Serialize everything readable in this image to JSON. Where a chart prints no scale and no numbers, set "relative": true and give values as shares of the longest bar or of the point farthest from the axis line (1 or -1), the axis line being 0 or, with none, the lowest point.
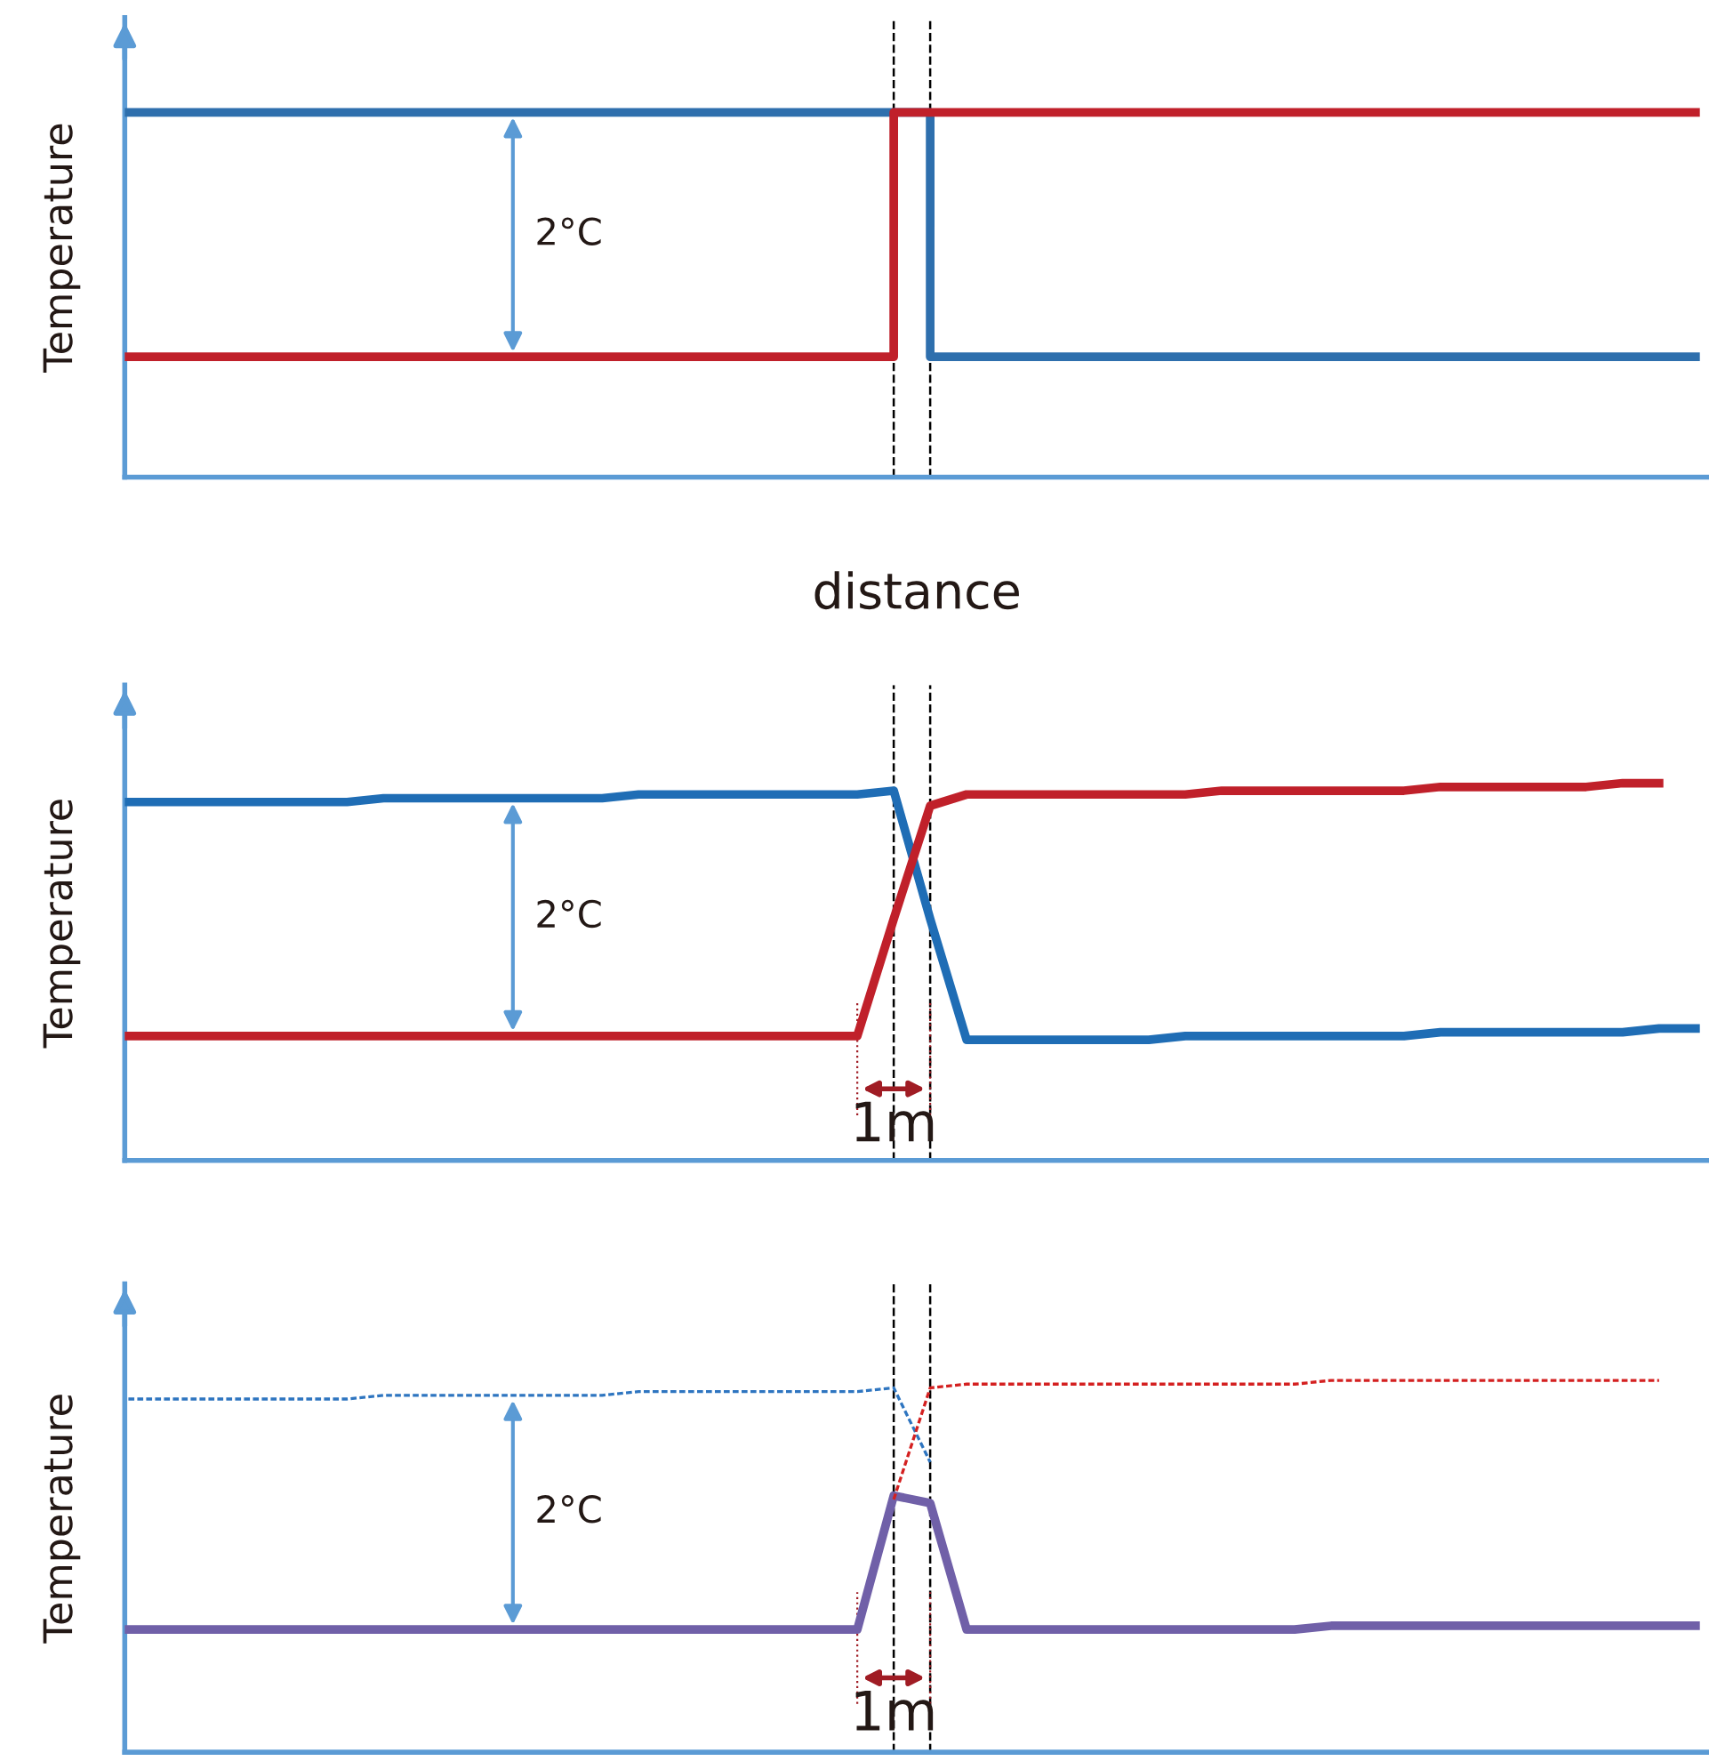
{
  "chart_data": [
    {
      "type": "step",
      "relative": true,
      "xlabel": "distance",
      "ylabel": "Temperature",
      "categories": [
        null,
        null,
        null,
        null,
        null,
        null,
        null,
        null,
        null,
        null,
        null,
        null,
        null,
        null,
        null,
        null,
        null,
        null,
        null,
        null,
        null,
        null,
        null,
        null,
        null,
        null,
        null,
        null,
        null,
        null,
        null,
        null,
        null,
        null,
        null,
        null,
        null,
        null,
        null,
        null,
        null,
        null,
        null,
        null
      ],
      "series": [
        {
          "color": "#2e6fad",
          "values": [
            1,
            1,
            1,
            1,
            1,
            1,
            1,
            1,
            1,
            1,
            1,
            1,
            1,
            1,
            1,
            1,
            1,
            1,
            1,
            1,
            1,
            1,
            0.33,
            0.33,
            0.33,
            0.33,
            0.33,
            0.33,
            0.33,
            0.33,
            0.33,
            0.33,
            0.33,
            0.33,
            0.33,
            0.33,
            0.33,
            0.33,
            0.33,
            0.33,
            0.33,
            0.33,
            0.33,
            0.33
          ]
        },
        {
          "color": "#c0202a",
          "values": [
            0.33,
            0.33,
            0.33,
            0.33,
            0.33,
            0.33,
            0.33,
            0.33,
            0.33,
            0.33,
            0.33,
            0.33,
            0.33,
            0.33,
            0.33,
            0.33,
            0.33,
            0.33,
            0.33,
            0.33,
            0.33,
            1,
            1,
            1,
            1,
            1,
            1,
            1,
            1,
            1,
            1,
            1,
            1,
            1,
            1,
            1,
            1,
            1,
            1,
            1,
            1,
            1,
            1,
            1
          ]
        }
      ],
      "annotations": [
        "2°C"
      ]
    },
    {
      "type": "line",
      "relative": true,
      "ylabel": "Temperature",
      "categories": [
        null,
        null,
        null,
        null,
        null,
        null,
        null,
        null,
        null,
        null,
        null,
        null,
        null,
        null,
        null,
        null,
        null,
        null,
        null,
        null,
        null,
        null,
        null,
        null,
        null,
        null,
        null,
        null,
        null,
        null,
        null,
        null,
        null,
        null,
        null,
        null,
        null,
        null,
        null,
        null,
        null,
        null,
        null,
        null
      ],
      "series": [
        {
          "color": "#1f6db5",
          "values": [
            0.95,
            0.95,
            0.95,
            0.95,
            0.95,
            0.95,
            0.95,
            0.96,
            0.96,
            0.96,
            0.96,
            0.96,
            0.96,
            0.96,
            0.97,
            0.97,
            0.97,
            0.97,
            0.97,
            0.97,
            0.97,
            0.98,
            0.64,
            0.32,
            0.32,
            0.32,
            0.32,
            0.32,
            0.32,
            0.33,
            0.33,
            0.33,
            0.33,
            0.33,
            0.33,
            0.33,
            0.34,
            0.34,
            0.34,
            0.34,
            0.34,
            0.34,
            0.35,
            0.35
          ]
        },
        {
          "color": "#c0202a",
          "values": [
            0.33,
            0.33,
            0.33,
            0.33,
            0.33,
            0.33,
            0.33,
            0.33,
            0.33,
            0.33,
            0.33,
            0.33,
            0.33,
            0.33,
            0.33,
            0.33,
            0.33,
            0.33,
            0.33,
            0.33,
            0.33,
            0.64,
            0.94,
            0.97,
            0.97,
            0.97,
            0.97,
            0.97,
            0.97,
            0.97,
            0.98,
            0.98,
            0.98,
            0.98,
            0.98,
            0.98,
            0.99,
            0.99,
            0.99,
            0.99,
            0.99,
            1,
            1,
            null
          ]
        }
      ],
      "annotations": [
        "2°C",
        "1m"
      ]
    },
    {
      "type": "line",
      "relative": true,
      "ylabel": "Temperature",
      "categories": [
        null,
        null,
        null,
        null,
        null,
        null,
        null,
        null,
        null,
        null,
        null,
        null,
        null,
        null,
        null,
        null,
        null,
        null,
        null,
        null,
        null,
        null,
        null,
        null,
        null,
        null,
        null,
        null,
        null,
        null,
        null,
        null,
        null,
        null,
        null,
        null,
        null,
        null,
        null,
        null,
        null,
        null,
        null,
        null
      ],
      "series": [
        {
          "color": "#2e75c0",
          "line_style": "dashed",
          "values": [
            0.95,
            0.95,
            0.95,
            0.95,
            0.95,
            0.95,
            0.95,
            0.96,
            0.96,
            0.96,
            0.96,
            0.96,
            0.96,
            0.96,
            0.97,
            0.97,
            0.97,
            0.97,
            0.97,
            0.97,
            0.97,
            0.98,
            0.78,
            null,
            null,
            null,
            null,
            null,
            null,
            null,
            null,
            null,
            null,
            null,
            null,
            null,
            null,
            null,
            null,
            null,
            null,
            null,
            null,
            null
          ]
        },
        {
          "color": "#d42020",
          "line_style": "dashed",
          "values": [
            null,
            null,
            null,
            null,
            null,
            null,
            null,
            null,
            null,
            null,
            null,
            null,
            null,
            null,
            null,
            null,
            null,
            null,
            null,
            null,
            null,
            0.68,
            0.98,
            0.99,
            0.99,
            0.99,
            0.99,
            0.99,
            0.99,
            0.99,
            0.99,
            0.99,
            0.99,
            1,
            1,
            1,
            1,
            1,
            1,
            1,
            1,
            1,
            1,
            null
          ]
        },
        {
          "color": "#7060a8",
          "line_style": "solid",
          "values": [
            0.33,
            0.33,
            0.33,
            0.33,
            0.33,
            0.33,
            0.33,
            0.33,
            0.33,
            0.33,
            0.33,
            0.33,
            0.33,
            0.33,
            0.33,
            0.33,
            0.33,
            0.33,
            0.33,
            0.33,
            0.33,
            0.69,
            0.67,
            0.33,
            0.33,
            0.33,
            0.33,
            0.33,
            0.33,
            0.33,
            0.33,
            0.33,
            0.33,
            0.34,
            0.34,
            0.34,
            0.34,
            0.34,
            0.34,
            0.34,
            0.34,
            0.34,
            0.34,
            0.34
          ]
        }
      ],
      "annotations": [
        "2°C",
        "1m"
      ]
    }
  ]
}
